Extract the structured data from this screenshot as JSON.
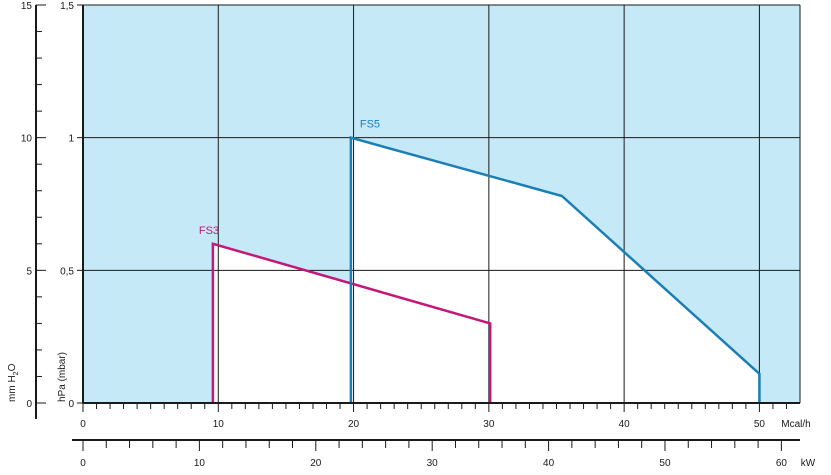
{
  "chart_data": {
    "type": "area",
    "title": "",
    "background_color": "#c6e9f8",
    "envelope_fill": "#ffffff",
    "grid": true,
    "x_primary": {
      "unit_label": "Mcal/h",
      "range": [
        0,
        53
      ],
      "ticks": [
        0,
        10,
        20,
        30,
        40,
        50
      ],
      "minor_step": 1
    },
    "x_secondary": {
      "unit_label": "kW",
      "range": [
        0,
        61.6
      ],
      "ticks": [
        0,
        10,
        20,
        30,
        40,
        50,
        60
      ],
      "minor_step": 2
    },
    "y_hpa": {
      "unit_label": "hPa (mbar)",
      "range": [
        0,
        1.5
      ],
      "ticks": [
        0,
        0.5,
        1,
        1.5
      ],
      "tick_labels": [
        "0",
        "0,5",
        "1",
        "1,5"
      ]
    },
    "y_mmh2o": {
      "unit_label": "mm H2O",
      "range": [
        0,
        15
      ],
      "ticks": [
        0,
        5,
        10,
        15
      ],
      "tick_labels": [
        "0",
        "5",
        "10",
        "15"
      ],
      "minor_step": 1
    },
    "series": [
      {
        "name": "FS3",
        "color": "#c2187a",
        "points": [
          [
            9.6,
            0
          ],
          [
            9.6,
            0.6
          ],
          [
            30.1,
            0.3
          ],
          [
            30.1,
            0
          ]
        ]
      },
      {
        "name": "FS5",
        "color": "#1a7fb5",
        "points": [
          [
            19.8,
            0
          ],
          [
            19.8,
            1.0
          ],
          [
            35.4,
            0.78
          ],
          [
            50,
            0.11
          ],
          [
            50,
            0
          ]
        ]
      }
    ]
  }
}
